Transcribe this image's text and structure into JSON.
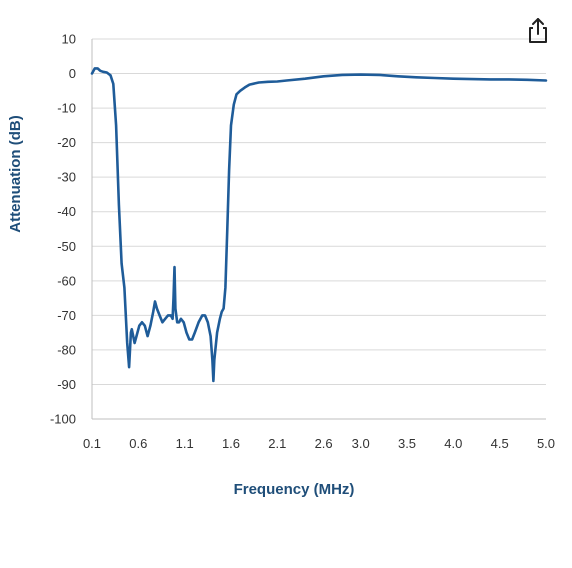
{
  "toolbar": {
    "share_icon": "share-icon"
  },
  "colors": {
    "line": "#1f5c99",
    "grid": "#d9d9d9",
    "axis_title": "#1f4e79",
    "tick": "#333333"
  },
  "chart_data": {
    "type": "line",
    "title": "",
    "xlabel": "Frequency (MHz)",
    "ylabel": "Attenuation (dB)",
    "xlim": [
      0.1,
      5.0
    ],
    "ylim": [
      -100,
      10
    ],
    "grid": "horizontal",
    "legend": "none",
    "x_ticks": [
      0.1,
      0.6,
      1.1,
      1.6,
      2.1,
      2.6,
      3.0,
      3.5,
      4.0,
      4.5,
      5.0
    ],
    "x_tick_labels": [
      "0.1",
      "0.6",
      "1.1",
      "1.6",
      "2.1",
      "2.6",
      "3.0",
      "3.5",
      "4.0",
      "4.5",
      "5.0"
    ],
    "y_ticks": [
      10,
      0,
      -10,
      -20,
      -30,
      -40,
      -50,
      -60,
      -70,
      -80,
      -90,
      -100
    ],
    "y_tick_labels": [
      "10",
      "0",
      "-10",
      "-20",
      "-30",
      "-40",
      "-50",
      "-60",
      "-70",
      "-80",
      "-90",
      "-100"
    ],
    "series": [
      {
        "color": "#1f5c99",
        "x": [
          0.1,
          0.13,
          0.16,
          0.19,
          0.22,
          0.26,
          0.3,
          0.33,
          0.36,
          0.39,
          0.42,
          0.45,
          0.48,
          0.5,
          0.51,
          0.52,
          0.53,
          0.56,
          0.58,
          0.61,
          0.64,
          0.67,
          0.7,
          0.73,
          0.76,
          0.78,
          0.8,
          0.83,
          0.86,
          0.89,
          0.92,
          0.95,
          0.97,
          0.98,
          0.99,
          1.0,
          1.01,
          1.02,
          1.04,
          1.06,
          1.09,
          1.12,
          1.15,
          1.18,
          1.21,
          1.25,
          1.29,
          1.32,
          1.35,
          1.38,
          1.4,
          1.41,
          1.42,
          1.45,
          1.48,
          1.5,
          1.52,
          1.54,
          1.56,
          1.58,
          1.6,
          1.63,
          1.66,
          1.7,
          1.75,
          1.8,
          1.9,
          2.0,
          2.1,
          2.2,
          2.4,
          2.6,
          2.8,
          3.0,
          3.2,
          3.4,
          3.6,
          3.8,
          4.0,
          4.2,
          4.4,
          4.6,
          4.8,
          5.0
        ],
        "y": [
          0.0,
          1.5,
          1.5,
          0.8,
          0.5,
          0.3,
          -0.5,
          -3,
          -15,
          -38,
          -55,
          -62,
          -78,
          -85,
          -80,
          -75,
          -74,
          -78,
          -76,
          -73,
          -72,
          -73,
          -76,
          -73,
          -69,
          -66,
          -68,
          -70,
          -72,
          -71,
          -70,
          -70,
          -71,
          -65,
          -56,
          -68,
          -70,
          -72,
          -72,
          -71,
          -72,
          -75,
          -77,
          -77,
          -75,
          -72,
          -70,
          -70,
          -72,
          -76,
          -83,
          -89,
          -83,
          -75,
          -71,
          -69,
          -68,
          -62,
          -45,
          -28,
          -15,
          -9,
          -6,
          -5,
          -4,
          -3.2,
          -2.6,
          -2.4,
          -2.3,
          -2.0,
          -1.5,
          -0.8,
          -0.4,
          -0.3,
          -0.4,
          -0.8,
          -1.1,
          -1.3,
          -1.5,
          -1.6,
          -1.7,
          -1.7,
          -1.8,
          -2.0
        ]
      }
    ]
  }
}
